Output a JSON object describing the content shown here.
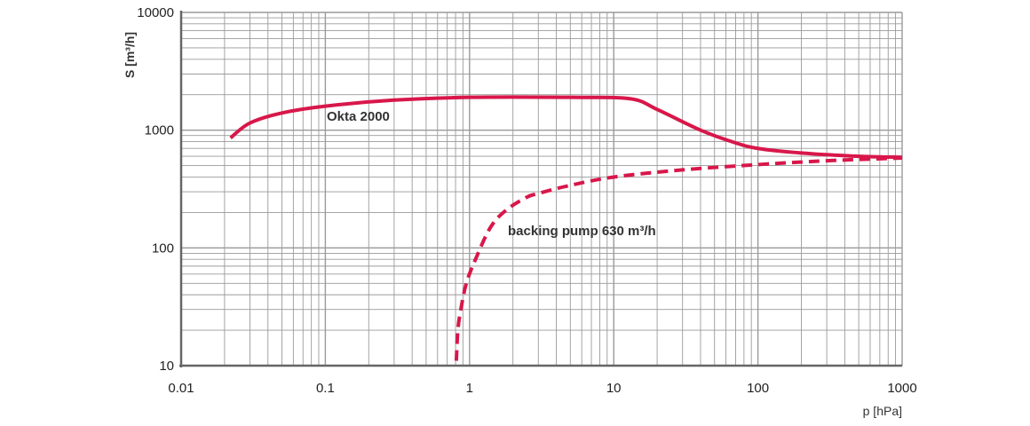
{
  "chart_data": {
    "type": "line",
    "title": "",
    "xlabel": "p [hPa]",
    "ylabel": "S [m³/h]",
    "xscale": "log",
    "yscale": "log",
    "xlim": [
      0.01,
      1000
    ],
    "ylim": [
      10,
      10000
    ],
    "x_ticks": [
      "0.01",
      "0.1",
      "1",
      "10",
      "100",
      "1000"
    ],
    "y_ticks": [
      "10",
      "100",
      "1000",
      "10000"
    ],
    "grid": true,
    "colors": {
      "series": "#d8174a",
      "grid": "#9a9a9a"
    },
    "series": [
      {
        "name": "Okta 2000",
        "style": "solid",
        "x": [
          0.022,
          0.03,
          0.05,
          0.1,
          0.3,
          1,
          5,
          13,
          20,
          40,
          70,
          100,
          200,
          500,
          1000
        ],
        "y": [
          860,
          1150,
          1400,
          1600,
          1800,
          1900,
          1900,
          1850,
          1500,
          1000,
          780,
          700,
          640,
          600,
          590
        ]
      },
      {
        "name": "backing pump 630 m³/h",
        "style": "dashed",
        "x": [
          0.81,
          0.83,
          0.87,
          0.95,
          1.1,
          1.4,
          1.8,
          2.5,
          3,
          5,
          10,
          30,
          100,
          300,
          1000
        ],
        "y": [
          11,
          20,
          30,
          50,
          80,
          150,
          210,
          270,
          290,
          340,
          400,
          460,
          510,
          550,
          580
        ]
      }
    ],
    "annotations": [
      "Okta 2000",
      "backing pump 630 m³/h"
    ]
  }
}
